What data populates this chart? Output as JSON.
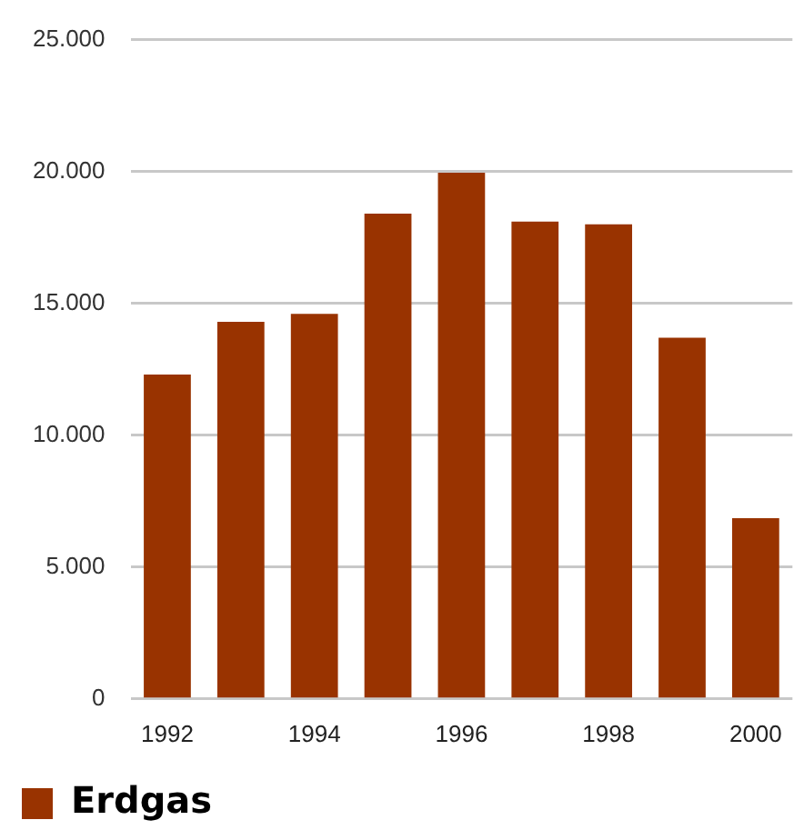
{
  "chart_data": {
    "type": "bar",
    "categories": [
      "1992",
      null,
      "1994",
      null,
      "1996",
      null,
      "1998",
      null,
      "2000"
    ],
    "series": [
      {
        "name": "Erdgas",
        "color": "#993300",
        "values": [
          12300,
          14300,
          14600,
          18400,
          19950,
          18100,
          18000,
          13700,
          6850
        ]
      }
    ],
    "ylim": [
      0,
      25000
    ],
    "yticks": [
      {
        "value": 0,
        "label": "0"
      },
      {
        "value": 5000,
        "label": "5.000"
      },
      {
        "value": 10000,
        "label": "10.000"
      },
      {
        "value": 15000,
        "label": "15.000"
      },
      {
        "value": 20000,
        "label": "20.000"
      },
      {
        "value": 25000,
        "label": "25.000"
      }
    ],
    "grid": "y",
    "legend": "bottom left"
  }
}
